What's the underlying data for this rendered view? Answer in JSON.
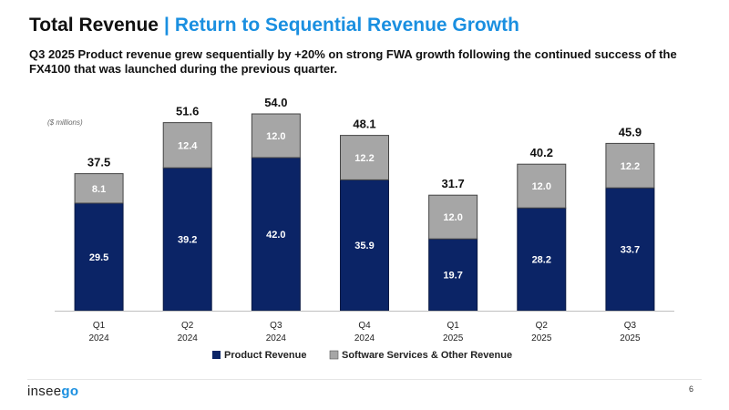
{
  "header": {
    "title": "Total Revenue",
    "separator": "|",
    "subtitle_highlight": "Return to Sequential Revenue Growth",
    "description": "Q3 2025 Product revenue grew sequentially by +20% on strong FWA growth following the continued success of the FX4100 that was launched during the previous quarter."
  },
  "footer": {
    "brand_prefix": "insee",
    "brand_accent": "go",
    "page_number": "6"
  },
  "colors": {
    "product": "#0b2466",
    "software": "#a6a6a6",
    "accent": "#1a8fe0"
  },
  "chart_data": {
    "type": "bar",
    "stacked": true,
    "unit_label": "($ millions)",
    "categories": [
      {
        "quarter": "Q1",
        "year": "2024"
      },
      {
        "quarter": "Q2",
        "year": "2024"
      },
      {
        "quarter": "Q3",
        "year": "2024"
      },
      {
        "quarter": "Q4",
        "year": "2024"
      },
      {
        "quarter": "Q1",
        "year": "2025"
      },
      {
        "quarter": "Q2",
        "year": "2025"
      },
      {
        "quarter": "Q3",
        "year": "2025"
      }
    ],
    "series": [
      {
        "name": "Product Revenue",
        "values": [
          29.5,
          39.2,
          42.0,
          35.9,
          19.7,
          28.2,
          33.7
        ]
      },
      {
        "name": "Software Services & Other Revenue",
        "values": [
          8.1,
          12.4,
          12.0,
          12.2,
          12.0,
          12.0,
          12.2
        ]
      }
    ],
    "totals": [
      37.5,
      51.6,
      54.0,
      48.1,
      31.7,
      40.2,
      45.9
    ],
    "legend_position": "bottom",
    "ylim": [
      0,
      54
    ]
  }
}
